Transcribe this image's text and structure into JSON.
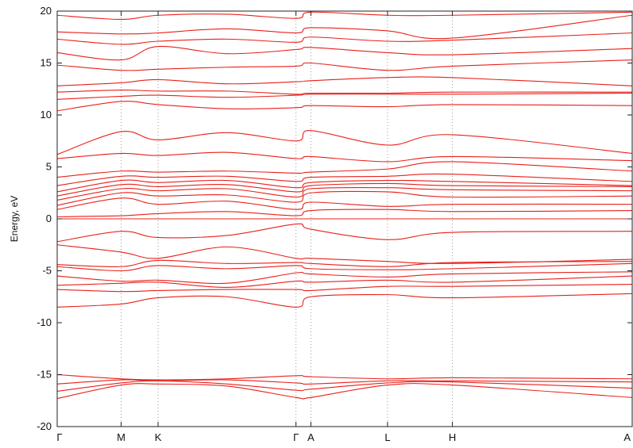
{
  "chart_data": {
    "type": "line",
    "title": "",
    "xlabel": "",
    "ylabel": "Energy, eV",
    "ylim": [
      -20,
      20
    ],
    "y_ticks": [
      -20,
      -15,
      -10,
      -5,
      0,
      5,
      10,
      15,
      20
    ],
    "y_tick_labels": [
      "-20",
      "-15",
      "-10",
      "-5",
      "0",
      "5",
      "10",
      "15",
      "20"
    ],
    "x_path": {
      "labels": [
        "Γ",
        "M",
        "K",
        "Γ",
        "A",
        "L",
        "H",
        "A"
      ],
      "positions": [
        0.0,
        1.0,
        1.577,
        3.732,
        3.965,
        5.163,
        6.176,
        8.987
      ]
    },
    "fermi_level": 0,
    "grid": "dotted vertical lines at high-symmetry points",
    "line_color": "#e8201a",
    "series": [
      {
        "values": [
          -17.3,
          -16.0,
          -15.9,
          -16.1,
          -17.2,
          -17.2,
          -16.0,
          -16.0,
          -17.2
        ]
      },
      {
        "values": [
          -16.6,
          -15.8,
          -15.6,
          -15.9,
          -16.5,
          -16.4,
          -15.8,
          -15.7,
          -16.3
        ]
      },
      {
        "values": [
          -15.9,
          -15.5,
          -15.6,
          -15.5,
          -15.8,
          -15.9,
          -15.6,
          -15.6,
          -15.7
        ]
      },
      {
        "values": [
          -15.0,
          -15.4,
          -15.5,
          -15.4,
          -15.1,
          -15.2,
          -15.4,
          -15.3,
          -15.4
        ]
      },
      {
        "values": [
          -8.5,
          -8.2,
          -7.6,
          -7.5,
          -8.5,
          -7.5,
          -7.3,
          -7.6,
          -7.2
        ]
      },
      {
        "values": [
          -6.8,
          -7.0,
          -6.9,
          -6.8,
          -6.8,
          -6.9,
          -6.5,
          -6.5,
          -6.3
        ]
      },
      {
        "values": [
          -6.4,
          -6.2,
          -6.1,
          -6.6,
          -6.0,
          -6.1,
          -5.9,
          -6.1,
          -5.5
        ]
      },
      {
        "values": [
          -5.5,
          -6.0,
          -5.9,
          -6.2,
          -5.2,
          -5.3,
          -5.6,
          -5.3,
          -5.1
        ]
      },
      {
        "values": [
          -4.6,
          -5.0,
          -4.5,
          -4.8,
          -4.5,
          -4.8,
          -4.9,
          -4.8,
          -4.3
        ]
      },
      {
        "values": [
          -4.4,
          -4.6,
          -4.0,
          -4.3,
          -4.2,
          -4.3,
          -4.6,
          -4.2,
          -4.1
        ]
      },
      {
        "values": [
          -2.5,
          -3.2,
          -3.8,
          -2.7,
          -3.8,
          -3.8,
          -4.1,
          -4.3,
          -3.9
        ]
      },
      {
        "values": [
          -2.2,
          -1.2,
          -1.8,
          -1.6,
          -0.5,
          -1.0,
          -2.0,
          -1.3,
          -1.2
        ]
      },
      {
        "values": [
          0.0,
          0.0,
          0.0,
          0.0,
          0.0,
          0.0,
          0.0,
          0.0,
          0.0
        ]
      },
      {
        "values": [
          0.2,
          0.3,
          0.5,
          0.7,
          0.3,
          0.8,
          0.9,
          0.7,
          0.8
        ]
      },
      {
        "values": [
          0.9,
          2.0,
          1.4,
          1.7,
          0.9,
          1.6,
          1.2,
          1.4,
          1.4
        ]
      },
      {
        "values": [
          1.3,
          2.5,
          2.2,
          2.3,
          1.6,
          2.5,
          2.6,
          2.1,
          2.2
        ]
      },
      {
        "values": [
          1.8,
          2.9,
          2.7,
          2.9,
          2.1,
          2.9,
          3.0,
          2.8,
          2.7
        ]
      },
      {
        "values": [
          2.2,
          3.3,
          3.1,
          3.3,
          2.6,
          3.2,
          3.4,
          3.2,
          3.1
        ]
      },
      {
        "values": [
          2.6,
          3.7,
          3.5,
          3.7,
          3.0,
          3.5,
          3.7,
          3.6,
          3.2
        ]
      },
      {
        "values": [
          3.2,
          4.1,
          4.0,
          4.1,
          3.6,
          4.0,
          4.1,
          4.3,
          3.6
        ]
      },
      {
        "values": [
          4.0,
          4.6,
          4.5,
          4.6,
          4.4,
          4.5,
          4.8,
          5.5,
          4.6
        ]
      },
      {
        "values": [
          5.8,
          6.3,
          6.1,
          6.4,
          5.8,
          6.0,
          5.5,
          6.0,
          5.6
        ]
      },
      {
        "values": [
          6.2,
          8.4,
          7.6,
          8.3,
          7.5,
          8.5,
          7.1,
          8.1,
          6.3
        ]
      },
      {
        "values": [
          10.4,
          11.3,
          11.0,
          10.6,
          10.7,
          10.9,
          10.8,
          11.0,
          10.9
        ]
      },
      {
        "values": [
          11.5,
          11.8,
          11.9,
          11.7,
          11.9,
          12.0,
          12.0,
          12.0,
          12.1
        ]
      },
      {
        "values": [
          12.2,
          12.4,
          12.3,
          12.3,
          12.0,
          12.1,
          12.1,
          12.2,
          12.2
        ]
      },
      {
        "values": [
          12.8,
          13.1,
          13.4,
          13.0,
          13.2,
          13.3,
          13.6,
          13.6,
          12.8
        ]
      },
      {
        "values": [
          14.8,
          14.3,
          14.4,
          14.6,
          14.7,
          15.0,
          14.3,
          14.7,
          15.3
        ]
      },
      {
        "values": [
          16.0,
          15.3,
          16.6,
          15.9,
          16.3,
          16.5,
          16.0,
          15.8,
          16.4
        ]
      },
      {
        "values": [
          17.3,
          16.8,
          17.1,
          17.3,
          17.0,
          17.5,
          17.1,
          17.2,
          17.9
        ]
      },
      {
        "values": [
          18.0,
          17.8,
          17.9,
          18.3,
          17.9,
          18.4,
          18.1,
          17.4,
          19.6
        ]
      },
      {
        "values": [
          19.6,
          19.2,
          19.6,
          19.7,
          19.3,
          19.9,
          19.6,
          19.6,
          19.9
        ]
      }
    ]
  }
}
